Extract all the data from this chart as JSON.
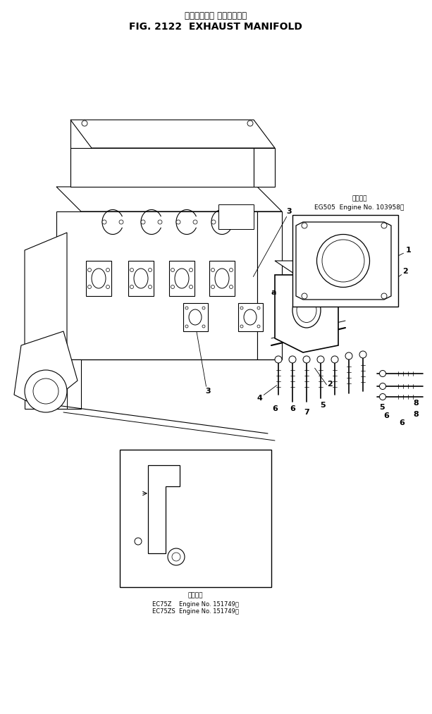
{
  "title_japanese": "エキゾースト マニホールド",
  "title_english": "FIG. 2122  EXHAUST MANIFOLD",
  "background_color": "#ffffff",
  "line_color": "#000000",
  "fig_width": 6.13,
  "fig_height": 10.13,
  "dpi": 100,
  "inset1_label_ja": "適用号機",
  "inset1_label_en": "EG505  Engine No. 103958～",
  "inset2_label_ja": "適用車両",
  "inset2_label_en1": "EC75Z    Engine No. 151749～",
  "inset2_label_en2": "EC75ZS  Engine No. 151749～"
}
